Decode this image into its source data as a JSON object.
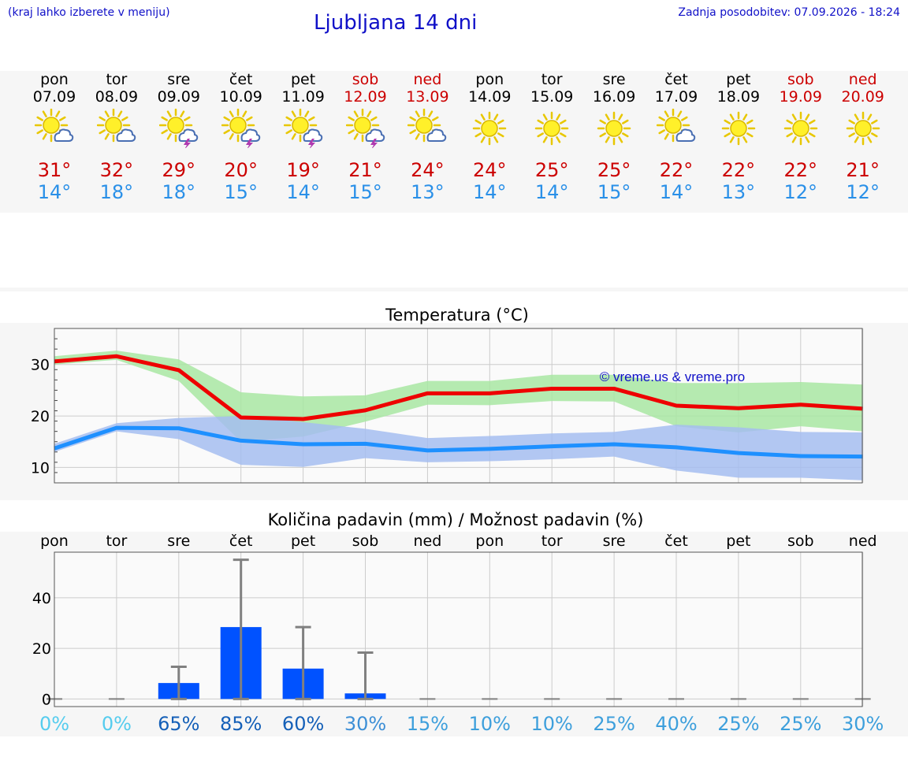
{
  "header": {
    "note": "(kraj lahko izberete v meniju)",
    "title": "Ljubljana 14 dni",
    "updated": "Zadnja posodobitev: 07.09.2026 - 18:24"
  },
  "colors": {
    "title_blue": "#1010c8",
    "weekend_red": "#cc0000",
    "max_red": "#cc0000",
    "min_blue": "#2a90e8",
    "max_line": "#ee0000",
    "min_line": "#1e90ff",
    "max_band": "#a8e6a2",
    "min_band": "#a4bdf0",
    "precip_bar": "#0052ff",
    "whisker": "#808080"
  },
  "days": [
    {
      "name": "pon",
      "date": "07.09",
      "weekend": false,
      "icon": "sun-cloud-icon",
      "max": "31°",
      "min": "14°"
    },
    {
      "name": "tor",
      "date": "08.09",
      "weekend": false,
      "icon": "sun-cloud-icon",
      "max": "32°",
      "min": "18°"
    },
    {
      "name": "sre",
      "date": "09.09",
      "weekend": false,
      "icon": "sun-storm-icon",
      "max": "29°",
      "min": "18°"
    },
    {
      "name": "čet",
      "date": "10.09",
      "weekend": false,
      "icon": "sun-storm-icon",
      "max": "20°",
      "min": "15°"
    },
    {
      "name": "pet",
      "date": "11.09",
      "weekend": false,
      "icon": "sun-storm-icon",
      "max": "19°",
      "min": "14°"
    },
    {
      "name": "sob",
      "date": "12.09",
      "weekend": true,
      "icon": "sun-storm-icon",
      "max": "21°",
      "min": "15°"
    },
    {
      "name": "ned",
      "date": "13.09",
      "weekend": true,
      "icon": "sun-cloud-icon",
      "max": "24°",
      "min": "13°"
    },
    {
      "name": "pon",
      "date": "14.09",
      "weekend": false,
      "icon": "sun-icon",
      "max": "24°",
      "min": "14°"
    },
    {
      "name": "tor",
      "date": "15.09",
      "weekend": false,
      "icon": "sun-icon",
      "max": "25°",
      "min": "14°"
    },
    {
      "name": "sre",
      "date": "16.09",
      "weekend": false,
      "icon": "sun-icon",
      "max": "25°",
      "min": "15°"
    },
    {
      "name": "čet",
      "date": "17.09",
      "weekend": false,
      "icon": "sun-cloud-icon",
      "max": "22°",
      "min": "14°"
    },
    {
      "name": "pet",
      "date": "18.09",
      "weekend": false,
      "icon": "sun-icon",
      "max": "22°",
      "min": "13°"
    },
    {
      "name": "sob",
      "date": "19.09",
      "weekend": true,
      "icon": "sun-icon",
      "max": "22°",
      "min": "12°"
    },
    {
      "name": "ned",
      "date": "20.09",
      "weekend": true,
      "icon": "sun-icon",
      "max": "21°",
      "min": "12°"
    }
  ],
  "chart_data": [
    {
      "type": "line",
      "title": "Temperatura (°C)",
      "x": [
        "07.09",
        "08.09",
        "09.09",
        "10.09",
        "11.09",
        "12.09",
        "13.09",
        "14.09",
        "15.09",
        "16.09",
        "17.09",
        "18.09",
        "19.09",
        "20.09"
      ],
      "ylim": [
        7,
        37
      ],
      "yticks": [
        10,
        20,
        30
      ],
      "grid": true,
      "watermark": "© vreme.us & vreme.pro",
      "series": [
        {
          "name": "max",
          "values": [
            30.6,
            31.6,
            28.9,
            19.7,
            19.4,
            21.1,
            24.4,
            24.4,
            25.3,
            25.3,
            22.0,
            21.5,
            22.2,
            21.4
          ]
        },
        {
          "name": "max_low",
          "values": [
            30.0,
            30.9,
            26.8,
            15.0,
            16.0,
            18.9,
            22.2,
            22.1,
            22.9,
            22.8,
            18.0,
            16.8,
            18.0,
            17.0
          ]
        },
        {
          "name": "max_high",
          "values": [
            31.6,
            32.7,
            31.0,
            24.6,
            23.8,
            24.0,
            26.8,
            26.8,
            28.0,
            28.0,
            26.4,
            26.4,
            26.6,
            26.1
          ]
        },
        {
          "name": "min",
          "values": [
            13.7,
            17.7,
            17.6,
            15.2,
            14.5,
            14.6,
            13.3,
            13.6,
            14.1,
            14.5,
            13.9,
            12.8,
            12.2,
            12.1
          ]
        },
        {
          "name": "min_low",
          "values": [
            13.0,
            17.0,
            15.5,
            10.5,
            10.1,
            11.8,
            11.0,
            11.2,
            11.6,
            12.1,
            9.4,
            8.0,
            8.0,
            7.5
          ]
        },
        {
          "name": "min_high",
          "values": [
            14.6,
            18.6,
            19.6,
            20.0,
            18.8,
            17.5,
            15.7,
            16.1,
            16.6,
            16.9,
            18.3,
            17.8,
            16.9,
            16.8
          ]
        }
      ]
    },
    {
      "type": "bar",
      "title": "Količina padavin (mm) / Možnost padavin (%)",
      "categories": [
        "pon",
        "tor",
        "sre",
        "čet",
        "pet",
        "sob",
        "ned",
        "pon",
        "tor",
        "sre",
        "čet",
        "pet",
        "sob",
        "ned"
      ],
      "ylim": [
        -3,
        58
      ],
      "yticks": [
        0,
        20,
        40
      ],
      "grid": true,
      "values": [
        0,
        0,
        6.3,
        28.4,
        12.0,
        2.2,
        0,
        0,
        0,
        0,
        0,
        0,
        0,
        0
      ],
      "error_low": [
        0,
        0,
        0,
        0,
        0,
        0,
        0,
        0,
        0,
        0,
        0,
        0,
        0,
        0
      ],
      "error_high": [
        0,
        0,
        12.7,
        55.0,
        28.4,
        18.3,
        0,
        0,
        0,
        0,
        0,
        0,
        0,
        0
      ],
      "probability": [
        "0%",
        "0%",
        "65%",
        "85%",
        "60%",
        "30%",
        "15%",
        "10%",
        "10%",
        "25%",
        "40%",
        "25%",
        "25%",
        "30%"
      ],
      "probability_colors": [
        "#55ccee",
        "#55ccee",
        "#1560b8",
        "#1560b8",
        "#1560b8",
        "#3d8fd6",
        "#3d9fdc",
        "#3d9fdc",
        "#3d9fdc",
        "#3d9fdc",
        "#3d9fdc",
        "#3d9fdc",
        "#3d9fdc",
        "#3d9fdc"
      ]
    }
  ]
}
